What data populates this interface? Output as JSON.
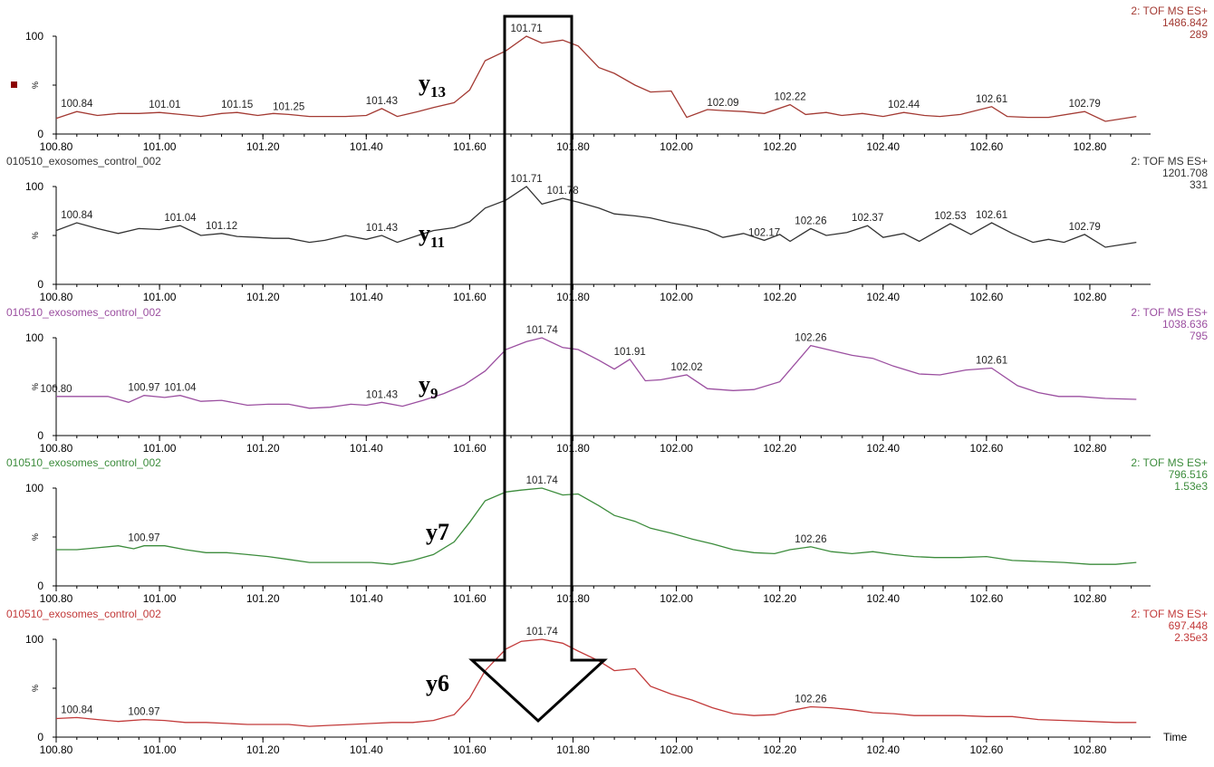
{
  "time_label": "Time",
  "marker_color": "#8b0000",
  "chart_data": [
    {
      "type": "line",
      "ion_label": "y13",
      "ion_base": "y",
      "ion_sub": "13",
      "file_label": "",
      "header": [
        "2: TOF MS ES+",
        "1486.842",
        "289"
      ],
      "color": "#a33a33",
      "xlim": [
        100.8,
        102.9
      ],
      "ylim": [
        0,
        100
      ],
      "ytick_labels": [
        "100",
        "%",
        "0"
      ],
      "xticks": [
        "100.80",
        "101.00",
        "101.20",
        "101.40",
        "101.60",
        "101.80",
        "102.00",
        "102.20",
        "102.40",
        "102.60",
        "102.80"
      ],
      "x": [
        100.8,
        100.84,
        100.88,
        100.92,
        100.96,
        101.0,
        101.04,
        101.08,
        101.12,
        101.15,
        101.19,
        101.22,
        101.25,
        101.29,
        101.32,
        101.36,
        101.4,
        101.43,
        101.46,
        101.5,
        101.53,
        101.57,
        101.6,
        101.63,
        101.67,
        101.71,
        101.74,
        101.78,
        101.81,
        101.85,
        101.88,
        101.92,
        101.95,
        101.99,
        102.02,
        102.06,
        102.09,
        102.13,
        102.17,
        102.22,
        102.25,
        102.29,
        102.32,
        102.36,
        102.4,
        102.44,
        102.48,
        102.51,
        102.55,
        102.61,
        102.64,
        102.68,
        102.72,
        102.79,
        102.83,
        102.89
      ],
      "y": [
        16,
        23,
        19,
        21,
        21,
        22,
        20,
        18,
        21,
        22,
        19,
        21,
        20,
        18,
        18,
        18,
        19,
        26,
        18,
        23,
        27,
        32,
        45,
        75,
        85,
        100,
        93,
        96,
        90,
        68,
        62,
        50,
        43,
        44,
        17,
        25,
        24,
        23,
        21,
        30,
        20,
        22,
        19,
        21,
        18,
        22,
        19,
        18,
        20,
        28,
        18,
        17,
        17,
        23,
        13,
        18
      ],
      "peak_labels": [
        {
          "text": "100.84",
          "x": 100.84,
          "y": 23
        },
        {
          "text": "101.01",
          "x": 101.01,
          "y": 22
        },
        {
          "text": "101.15",
          "x": 101.15,
          "y": 22
        },
        {
          "text": "101.25",
          "x": 101.25,
          "y": 20
        },
        {
          "text": "101.43",
          "x": 101.43,
          "y": 26
        },
        {
          "text": "101.71",
          "x": 101.71,
          "y": 100
        },
        {
          "text": "102.09",
          "x": 102.09,
          "y": 24
        },
        {
          "text": "102.22",
          "x": 102.22,
          "y": 30
        },
        {
          "text": "102.44",
          "x": 102.44,
          "y": 22
        },
        {
          "text": "102.61",
          "x": 102.61,
          "y": 28
        },
        {
          "text": "102.79",
          "x": 102.79,
          "y": 23
        }
      ]
    },
    {
      "type": "line",
      "ion_label": "y11",
      "ion_base": "y",
      "ion_sub": "11",
      "file_label": "010510_exosomes_control_002",
      "header": [
        "2: TOF MS ES+",
        "1201.708",
        "331"
      ],
      "color": "#333333",
      "xlim": [
        100.8,
        102.9
      ],
      "ylim": [
        0,
        100
      ],
      "ytick_labels": [
        "100",
        "%",
        "0"
      ],
      "xticks": [
        "100.80",
        "101.00",
        "101.20",
        "101.40",
        "101.60",
        "101.80",
        "102.00",
        "102.20",
        "102.40",
        "102.60",
        "102.80"
      ],
      "x": [
        100.8,
        100.84,
        100.88,
        100.92,
        100.96,
        101.0,
        101.04,
        101.08,
        101.12,
        101.15,
        101.19,
        101.22,
        101.25,
        101.29,
        101.32,
        101.36,
        101.4,
        101.43,
        101.46,
        101.5,
        101.53,
        101.57,
        101.6,
        101.63,
        101.67,
        101.71,
        101.74,
        101.78,
        101.81,
        101.85,
        101.88,
        101.92,
        101.95,
        101.99,
        102.02,
        102.06,
        102.09,
        102.13,
        102.17,
        102.2,
        102.22,
        102.26,
        102.29,
        102.33,
        102.37,
        102.4,
        102.44,
        102.47,
        102.53,
        102.57,
        102.61,
        102.65,
        102.69,
        102.72,
        102.75,
        102.79,
        102.83,
        102.89
      ],
      "y": [
        55,
        63,
        57,
        52,
        57,
        56,
        60,
        50,
        52,
        49,
        48,
        47,
        47,
        43,
        45,
        50,
        46,
        50,
        43,
        50,
        55,
        58,
        64,
        78,
        86,
        100,
        82,
        88,
        84,
        78,
        72,
        70,
        68,
        63,
        60,
        55,
        48,
        52,
        45,
        51,
        44,
        57,
        50,
        53,
        60,
        48,
        52,
        44,
        62,
        51,
        63,
        52,
        43,
        46,
        43,
        51,
        38,
        43
      ],
      "peak_labels": [
        {
          "text": "100.84",
          "x": 100.84,
          "y": 63
        },
        {
          "text": "101.04",
          "x": 101.04,
          "y": 60
        },
        {
          "text": "101.12",
          "x": 101.12,
          "y": 52
        },
        {
          "text": "101.43",
          "x": 101.43,
          "y": 50
        },
        {
          "text": "101.71",
          "x": 101.71,
          "y": 100
        },
        {
          "text": "101.78",
          "x": 101.78,
          "y": 88
        },
        {
          "text": "102.17",
          "x": 102.17,
          "y": 45
        },
        {
          "text": "102.26",
          "x": 102.26,
          "y": 57
        },
        {
          "text": "102.37",
          "x": 102.37,
          "y": 60
        },
        {
          "text": "102.53",
          "x": 102.53,
          "y": 62
        },
        {
          "text": "102.61",
          "x": 102.61,
          "y": 63
        },
        {
          "text": "102.79",
          "x": 102.79,
          "y": 51
        }
      ]
    },
    {
      "type": "line",
      "ion_label": "y9",
      "ion_base": "y",
      "ion_sub": "9",
      "file_label": "010510_exosomes_control_002",
      "header": [
        "2: TOF MS ES+",
        "1038.636",
        "795"
      ],
      "color": "#9b4fa0",
      "xlim": [
        100.8,
        102.9
      ],
      "ylim": [
        0,
        100
      ],
      "ytick_labels": [
        "100",
        "%",
        "0"
      ],
      "xticks": [
        "100.80",
        "101.00",
        "101.20",
        "101.40",
        "101.60",
        "101.80",
        "102.00",
        "102.20",
        "102.40",
        "102.60",
        "102.80"
      ],
      "x": [
        100.8,
        100.85,
        100.9,
        100.94,
        100.97,
        101.01,
        101.04,
        101.08,
        101.12,
        101.17,
        101.21,
        101.25,
        101.29,
        101.33,
        101.37,
        101.4,
        101.43,
        101.47,
        101.51,
        101.55,
        101.59,
        101.63,
        101.67,
        101.71,
        101.74,
        101.78,
        101.81,
        101.85,
        101.88,
        101.91,
        101.94,
        101.97,
        102.02,
        102.06,
        102.11,
        102.15,
        102.2,
        102.26,
        102.3,
        102.34,
        102.38,
        102.42,
        102.47,
        102.51,
        102.56,
        102.61,
        102.66,
        102.7,
        102.74,
        102.78,
        102.83,
        102.89
      ],
      "y": [
        40,
        40,
        40,
        34,
        41,
        39,
        41,
        35,
        36,
        31,
        32,
        32,
        28,
        29,
        32,
        31,
        34,
        30,
        36,
        43,
        52,
        66,
        88,
        96,
        100,
        90,
        88,
        77,
        68,
        78,
        56,
        57,
        62,
        48,
        46,
        47,
        55,
        92,
        87,
        82,
        79,
        71,
        63,
        62,
        67,
        69,
        51,
        44,
        40,
        40,
        38,
        37
      ],
      "peak_labels": [
        {
          "text": "100.80",
          "x": 100.8,
          "y": 40
        },
        {
          "text": "100.97",
          "x": 100.97,
          "y": 41
        },
        {
          "text": "101.04",
          "x": 101.04,
          "y": 41
        },
        {
          "text": "101.43",
          "x": 101.43,
          "y": 34
        },
        {
          "text": "101.74",
          "x": 101.74,
          "y": 100
        },
        {
          "text": "101.91",
          "x": 101.91,
          "y": 78
        },
        {
          "text": "102.02",
          "x": 102.02,
          "y": 62
        },
        {
          "text": "102.26",
          "x": 102.26,
          "y": 92
        },
        {
          "text": "102.61",
          "x": 102.61,
          "y": 69
        }
      ]
    },
    {
      "type": "line",
      "ion_label": "y7",
      "ion_base": "y7",
      "ion_sub": "",
      "file_label": "010510_exosomes_control_002",
      "header": [
        "2: TOF MS ES+",
        "796.516",
        "1.53e3"
      ],
      "color": "#3c8c3c",
      "xlim": [
        100.8,
        102.9
      ],
      "ylim": [
        0,
        100
      ],
      "ytick_labels": [
        "100",
        "%",
        "0"
      ],
      "xticks": [
        "100.80",
        "101.00",
        "101.20",
        "101.40",
        "101.60",
        "101.80",
        "102.00",
        "102.20",
        "102.40",
        "102.60",
        "102.80"
      ],
      "x": [
        100.8,
        100.84,
        100.88,
        100.92,
        100.95,
        100.97,
        101.01,
        101.05,
        101.09,
        101.13,
        101.17,
        101.21,
        101.25,
        101.29,
        101.33,
        101.37,
        101.41,
        101.45,
        101.49,
        101.53,
        101.57,
        101.6,
        101.63,
        101.67,
        101.7,
        101.74,
        101.78,
        101.81,
        101.85,
        101.88,
        101.92,
        101.95,
        101.99,
        102.03,
        102.07,
        102.11,
        102.15,
        102.19,
        102.22,
        102.26,
        102.3,
        102.34,
        102.38,
        102.42,
        102.46,
        102.5,
        102.55,
        102.6,
        102.65,
        102.7,
        102.75,
        102.8,
        102.85,
        102.89
      ],
      "y": [
        37,
        37,
        39,
        41,
        38,
        41,
        41,
        37,
        34,
        34,
        32,
        30,
        27,
        24,
        24,
        24,
        24,
        22,
        26,
        32,
        45,
        65,
        87,
        96,
        98,
        100,
        93,
        94,
        82,
        72,
        66,
        59,
        54,
        48,
        43,
        37,
        34,
        33,
        37,
        40,
        35,
        33,
        35,
        32,
        30,
        29,
        29,
        30,
        26,
        25,
        24,
        22,
        22,
        24
      ],
      "peak_labels": [
        {
          "text": "100.97",
          "x": 100.97,
          "y": 41
        },
        {
          "text": "101.74",
          "x": 101.74,
          "y": 100
        },
        {
          "text": "102.26",
          "x": 102.26,
          "y": 40
        }
      ]
    },
    {
      "type": "line",
      "ion_label": "y6",
      "ion_base": "y6",
      "ion_sub": "",
      "file_label": "010510_exosomes_control_002",
      "header": [
        "2: TOF MS ES+",
        "697.448",
        "2.35e3"
      ],
      "color": "#c23a3a",
      "xlim": [
        100.8,
        102.9
      ],
      "ylim": [
        0,
        100
      ],
      "ytick_labels": [
        "100",
        "%",
        "0"
      ],
      "xticks": [
        "100.80",
        "101.00",
        "101.20",
        "101.40",
        "101.60",
        "101.80",
        "102.00",
        "102.20",
        "102.40",
        "102.60",
        "102.80"
      ],
      "x": [
        100.8,
        100.84,
        100.88,
        100.92,
        100.97,
        101.01,
        101.05,
        101.09,
        101.13,
        101.17,
        101.21,
        101.25,
        101.29,
        101.33,
        101.37,
        101.41,
        101.45,
        101.49,
        101.53,
        101.57,
        101.6,
        101.63,
        101.67,
        101.7,
        101.74,
        101.78,
        101.81,
        101.85,
        101.88,
        101.92,
        101.95,
        101.99,
        102.03,
        102.07,
        102.11,
        102.15,
        102.19,
        102.22,
        102.26,
        102.3,
        102.34,
        102.38,
        102.42,
        102.46,
        102.5,
        102.55,
        102.6,
        102.65,
        102.7,
        102.75,
        102.8,
        102.85,
        102.89
      ],
      "y": [
        19,
        20,
        18,
        16,
        18,
        17,
        15,
        15,
        14,
        13,
        13,
        13,
        11,
        12,
        13,
        14,
        15,
        15,
        17,
        23,
        40,
        68,
        90,
        98,
        100,
        96,
        88,
        78,
        68,
        70,
        52,
        44,
        38,
        30,
        24,
        22,
        23,
        27,
        31,
        30,
        28,
        25,
        24,
        22,
        22,
        22,
        21,
        21,
        18,
        17,
        16,
        15,
        15
      ],
      "peak_labels": [
        {
          "text": "100.84",
          "x": 100.84,
          "y": 20
        },
        {
          "text": "100.97",
          "x": 100.97,
          "y": 18
        },
        {
          "text": "101.74",
          "x": 101.74,
          "y": 100
        },
        {
          "text": "102.26",
          "x": 102.26,
          "y": 31
        }
      ]
    }
  ]
}
